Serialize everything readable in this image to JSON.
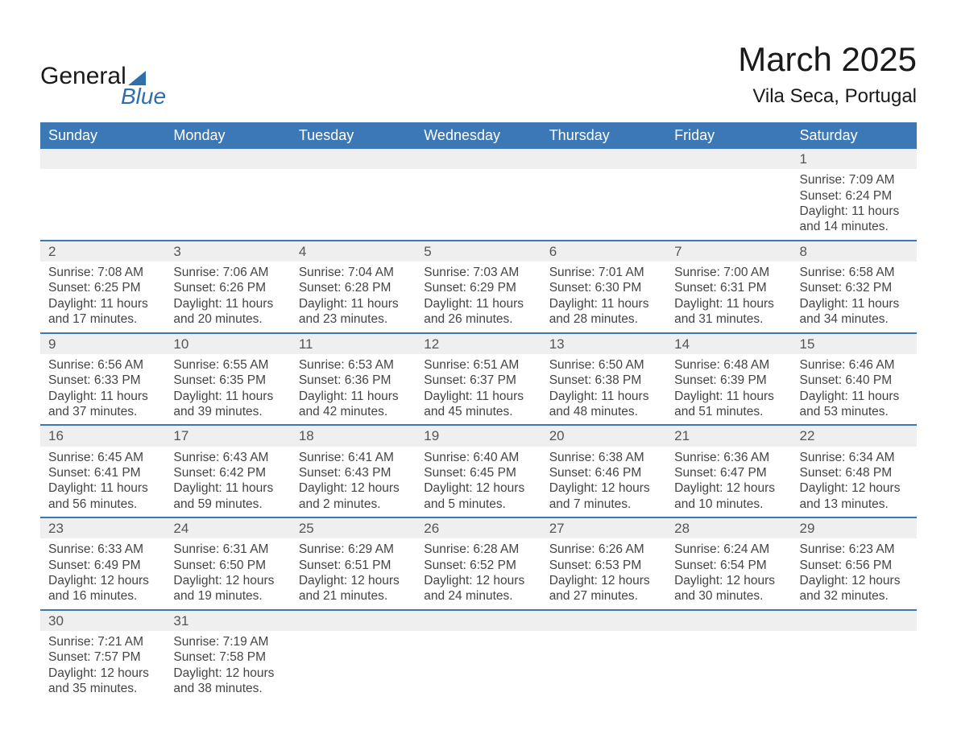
{
  "logo": {
    "text1": "General",
    "text2": "Blue"
  },
  "header": {
    "title": "March 2025",
    "location": "Vila Seca, Portugal"
  },
  "colors": {
    "header_bg": "#3b78b5",
    "header_text": "#ffffff",
    "row_divider": "#3b78b5",
    "daynum_bg": "#efefef",
    "body_text": "#444444",
    "page_bg": "#ffffff",
    "logo_accent": "#2f6fab"
  },
  "typography": {
    "title_fontsize_pt": 32,
    "location_fontsize_pt": 18,
    "header_fontsize_pt": 14,
    "cell_fontsize_pt": 12,
    "font_family": "Arial"
  },
  "week_headers": [
    "Sunday",
    "Monday",
    "Tuesday",
    "Wednesday",
    "Thursday",
    "Friday",
    "Saturday"
  ],
  "weeks": [
    [
      {
        "day": "",
        "sunrise": "",
        "sunset": "",
        "daylight": ""
      },
      {
        "day": "",
        "sunrise": "",
        "sunset": "",
        "daylight": ""
      },
      {
        "day": "",
        "sunrise": "",
        "sunset": "",
        "daylight": ""
      },
      {
        "day": "",
        "sunrise": "",
        "sunset": "",
        "daylight": ""
      },
      {
        "day": "",
        "sunrise": "",
        "sunset": "",
        "daylight": ""
      },
      {
        "day": "",
        "sunrise": "",
        "sunset": "",
        "daylight": ""
      },
      {
        "day": "1",
        "sunrise": "Sunrise: 7:09 AM",
        "sunset": "Sunset: 6:24 PM",
        "daylight": "Daylight: 11 hours and 14 minutes."
      }
    ],
    [
      {
        "day": "2",
        "sunrise": "Sunrise: 7:08 AM",
        "sunset": "Sunset: 6:25 PM",
        "daylight": "Daylight: 11 hours and 17 minutes."
      },
      {
        "day": "3",
        "sunrise": "Sunrise: 7:06 AM",
        "sunset": "Sunset: 6:26 PM",
        "daylight": "Daylight: 11 hours and 20 minutes."
      },
      {
        "day": "4",
        "sunrise": "Sunrise: 7:04 AM",
        "sunset": "Sunset: 6:28 PM",
        "daylight": "Daylight: 11 hours and 23 minutes."
      },
      {
        "day": "5",
        "sunrise": "Sunrise: 7:03 AM",
        "sunset": "Sunset: 6:29 PM",
        "daylight": "Daylight: 11 hours and 26 minutes."
      },
      {
        "day": "6",
        "sunrise": "Sunrise: 7:01 AM",
        "sunset": "Sunset: 6:30 PM",
        "daylight": "Daylight: 11 hours and 28 minutes."
      },
      {
        "day": "7",
        "sunrise": "Sunrise: 7:00 AM",
        "sunset": "Sunset: 6:31 PM",
        "daylight": "Daylight: 11 hours and 31 minutes."
      },
      {
        "day": "8",
        "sunrise": "Sunrise: 6:58 AM",
        "sunset": "Sunset: 6:32 PM",
        "daylight": "Daylight: 11 hours and 34 minutes."
      }
    ],
    [
      {
        "day": "9",
        "sunrise": "Sunrise: 6:56 AM",
        "sunset": "Sunset: 6:33 PM",
        "daylight": "Daylight: 11 hours and 37 minutes."
      },
      {
        "day": "10",
        "sunrise": "Sunrise: 6:55 AM",
        "sunset": "Sunset: 6:35 PM",
        "daylight": "Daylight: 11 hours and 39 minutes."
      },
      {
        "day": "11",
        "sunrise": "Sunrise: 6:53 AM",
        "sunset": "Sunset: 6:36 PM",
        "daylight": "Daylight: 11 hours and 42 minutes."
      },
      {
        "day": "12",
        "sunrise": "Sunrise: 6:51 AM",
        "sunset": "Sunset: 6:37 PM",
        "daylight": "Daylight: 11 hours and 45 minutes."
      },
      {
        "day": "13",
        "sunrise": "Sunrise: 6:50 AM",
        "sunset": "Sunset: 6:38 PM",
        "daylight": "Daylight: 11 hours and 48 minutes."
      },
      {
        "day": "14",
        "sunrise": "Sunrise: 6:48 AM",
        "sunset": "Sunset: 6:39 PM",
        "daylight": "Daylight: 11 hours and 51 minutes."
      },
      {
        "day": "15",
        "sunrise": "Sunrise: 6:46 AM",
        "sunset": "Sunset: 6:40 PM",
        "daylight": "Daylight: 11 hours and 53 minutes."
      }
    ],
    [
      {
        "day": "16",
        "sunrise": "Sunrise: 6:45 AM",
        "sunset": "Sunset: 6:41 PM",
        "daylight": "Daylight: 11 hours and 56 minutes."
      },
      {
        "day": "17",
        "sunrise": "Sunrise: 6:43 AM",
        "sunset": "Sunset: 6:42 PM",
        "daylight": "Daylight: 11 hours and 59 minutes."
      },
      {
        "day": "18",
        "sunrise": "Sunrise: 6:41 AM",
        "sunset": "Sunset: 6:43 PM",
        "daylight": "Daylight: 12 hours and 2 minutes."
      },
      {
        "day": "19",
        "sunrise": "Sunrise: 6:40 AM",
        "sunset": "Sunset: 6:45 PM",
        "daylight": "Daylight: 12 hours and 5 minutes."
      },
      {
        "day": "20",
        "sunrise": "Sunrise: 6:38 AM",
        "sunset": "Sunset: 6:46 PM",
        "daylight": "Daylight: 12 hours and 7 minutes."
      },
      {
        "day": "21",
        "sunrise": "Sunrise: 6:36 AM",
        "sunset": "Sunset: 6:47 PM",
        "daylight": "Daylight: 12 hours and 10 minutes."
      },
      {
        "day": "22",
        "sunrise": "Sunrise: 6:34 AM",
        "sunset": "Sunset: 6:48 PM",
        "daylight": "Daylight: 12 hours and 13 minutes."
      }
    ],
    [
      {
        "day": "23",
        "sunrise": "Sunrise: 6:33 AM",
        "sunset": "Sunset: 6:49 PM",
        "daylight": "Daylight: 12 hours and 16 minutes."
      },
      {
        "day": "24",
        "sunrise": "Sunrise: 6:31 AM",
        "sunset": "Sunset: 6:50 PM",
        "daylight": "Daylight: 12 hours and 19 minutes."
      },
      {
        "day": "25",
        "sunrise": "Sunrise: 6:29 AM",
        "sunset": "Sunset: 6:51 PM",
        "daylight": "Daylight: 12 hours and 21 minutes."
      },
      {
        "day": "26",
        "sunrise": "Sunrise: 6:28 AM",
        "sunset": "Sunset: 6:52 PM",
        "daylight": "Daylight: 12 hours and 24 minutes."
      },
      {
        "day": "27",
        "sunrise": "Sunrise: 6:26 AM",
        "sunset": "Sunset: 6:53 PM",
        "daylight": "Daylight: 12 hours and 27 minutes."
      },
      {
        "day": "28",
        "sunrise": "Sunrise: 6:24 AM",
        "sunset": "Sunset: 6:54 PM",
        "daylight": "Daylight: 12 hours and 30 minutes."
      },
      {
        "day": "29",
        "sunrise": "Sunrise: 6:23 AM",
        "sunset": "Sunset: 6:56 PM",
        "daylight": "Daylight: 12 hours and 32 minutes."
      }
    ],
    [
      {
        "day": "30",
        "sunrise": "Sunrise: 7:21 AM",
        "sunset": "Sunset: 7:57 PM",
        "daylight": "Daylight: 12 hours and 35 minutes."
      },
      {
        "day": "31",
        "sunrise": "Sunrise: 7:19 AM",
        "sunset": "Sunset: 7:58 PM",
        "daylight": "Daylight: 12 hours and 38 minutes."
      },
      {
        "day": "",
        "sunrise": "",
        "sunset": "",
        "daylight": ""
      },
      {
        "day": "",
        "sunrise": "",
        "sunset": "",
        "daylight": ""
      },
      {
        "day": "",
        "sunrise": "",
        "sunset": "",
        "daylight": ""
      },
      {
        "day": "",
        "sunrise": "",
        "sunset": "",
        "daylight": ""
      },
      {
        "day": "",
        "sunrise": "",
        "sunset": "",
        "daylight": ""
      }
    ]
  ]
}
